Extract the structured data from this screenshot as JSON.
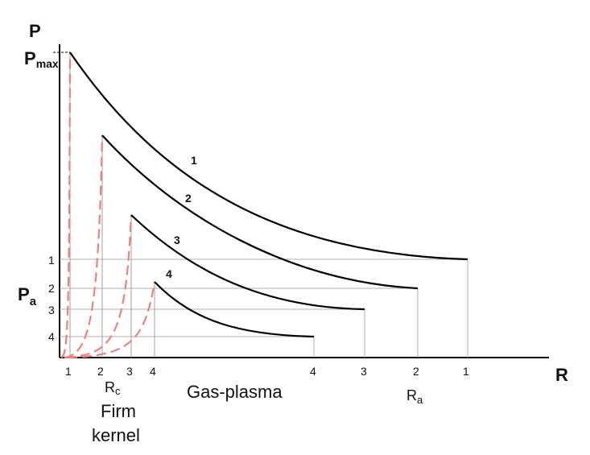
{
  "axes": {
    "y_label": "P",
    "x_label": "R",
    "pmax_label_main": "P",
    "pmax_label_sub": "max",
    "pa_label_main": "P",
    "pa_label_sub": "a"
  },
  "pa_ticks": [
    "1",
    "2",
    "3",
    "4"
  ],
  "curve_numbers": [
    "1",
    "2",
    "3",
    "4"
  ],
  "rc_ticks": [
    "1",
    "2",
    "3",
    "4"
  ],
  "ra_ticks": [
    "4",
    "3",
    "2",
    "1"
  ],
  "rc_label_main": "R",
  "rc_label_sub": "c",
  "ra_label_main": "R",
  "ra_label_sub": "a",
  "regions": {
    "gas_plasma": "Gas-plasma",
    "firm_kernel_line1": "Firm",
    "firm_kernel_line2": "kernel"
  },
  "colors": {
    "curve": "#000000",
    "dashed": "#f08080",
    "guide": "#b0b0b0"
  }
}
